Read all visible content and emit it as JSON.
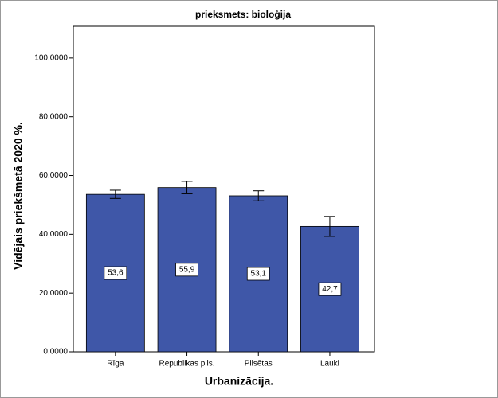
{
  "chart_data": {
    "type": "bar",
    "title": "prieksmets: bioloģija",
    "x_label": "Urbanizācija.",
    "y_label": "Vidējais priekšmetā 2020 %.",
    "categories": [
      "Rīga",
      "Republikas pils.",
      "Pilsētas",
      "Lauki"
    ],
    "values": [
      53.6,
      55.9,
      53.1,
      42.7
    ],
    "value_labels": [
      "53,6",
      "55,9",
      "53,1",
      "42,7"
    ],
    "errors": [
      1.4,
      2.1,
      1.7,
      3.4
    ],
    "color": "#3f57a8",
    "ylim": [
      0,
      110.8
    ],
    "yticks": [
      {
        "value": 0,
        "label": "0,0000"
      },
      {
        "value": 20,
        "label": "20,0000"
      },
      {
        "value": 40,
        "label": "40,0000"
      },
      {
        "value": 60,
        "label": "60,0000"
      },
      {
        "value": 80,
        "label": "80,0000"
      },
      {
        "value": 100,
        "label": "100,0000"
      }
    ]
  }
}
